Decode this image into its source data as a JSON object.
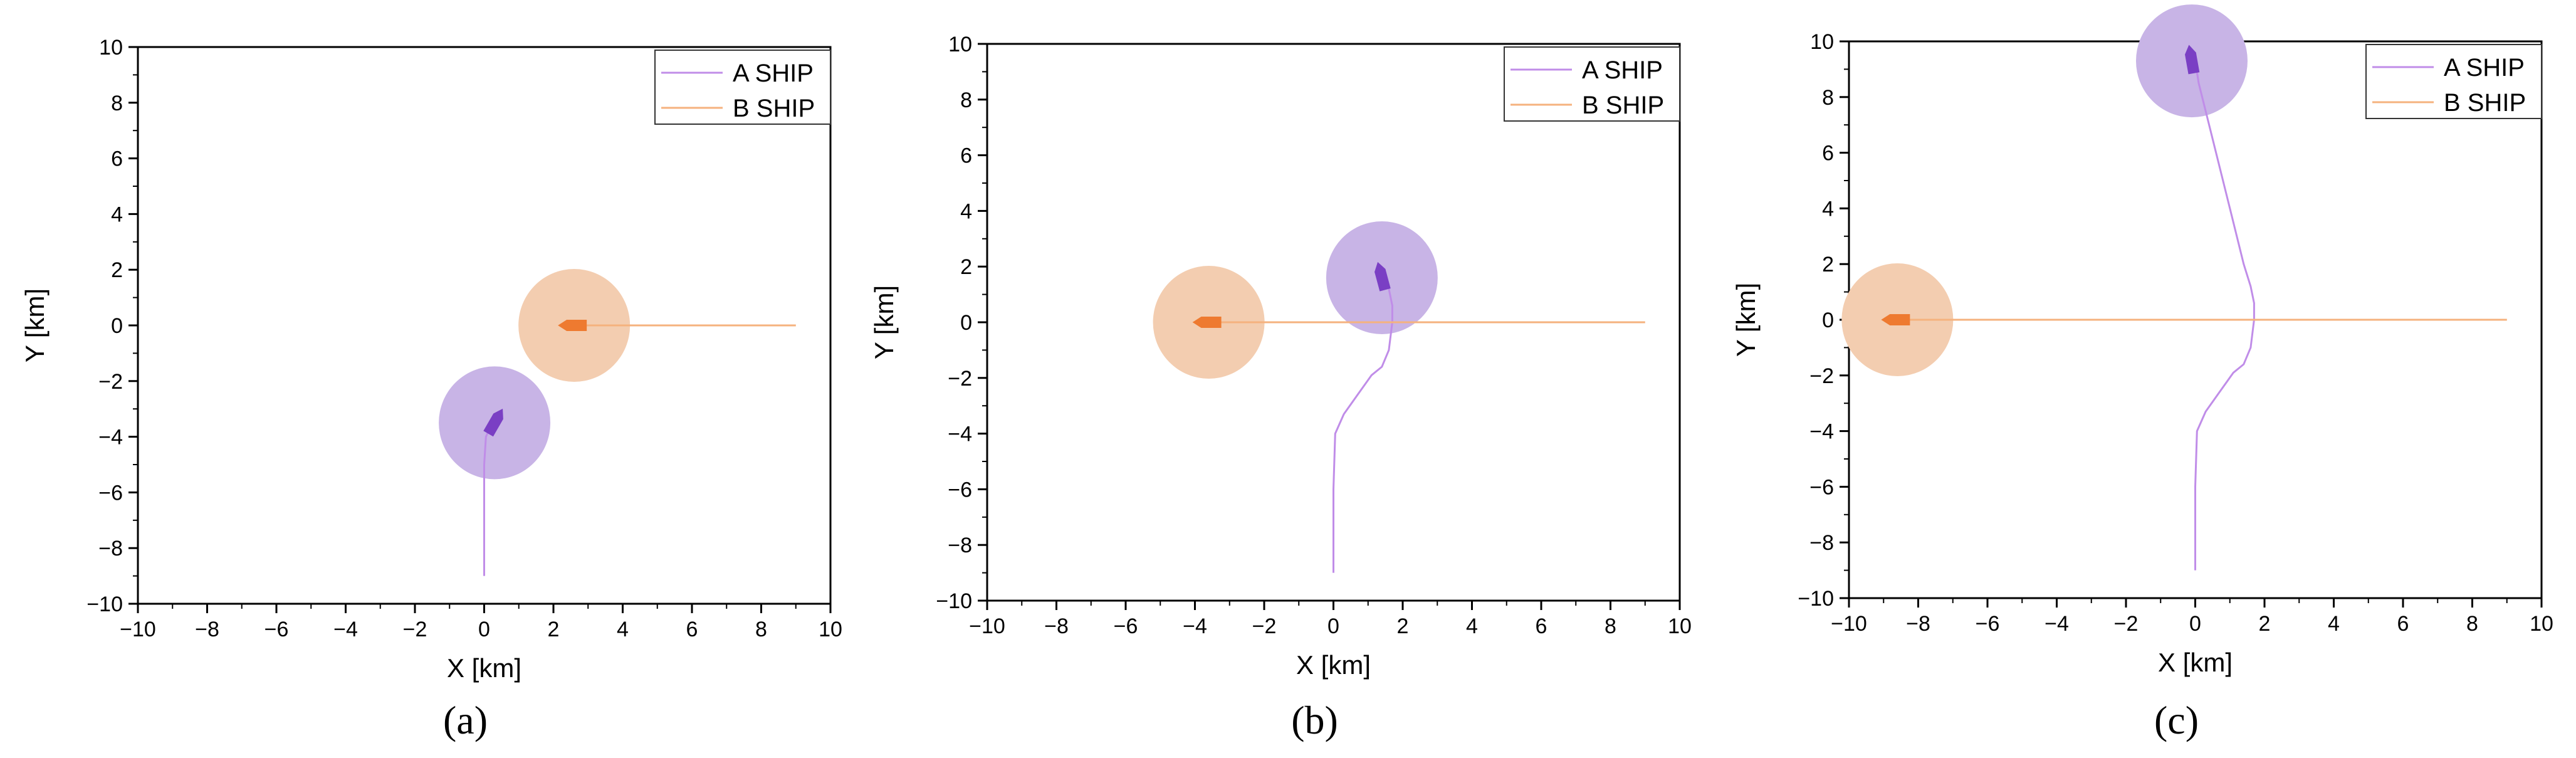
{
  "chart_data": [
    {
      "type": "line",
      "caption": "(a)",
      "xlabel": "X [km]",
      "ylabel": "Y [km]",
      "xlim": [
        -10,
        10
      ],
      "ylim": [
        -10,
        10
      ],
      "xticks": [
        -10,
        -8,
        -6,
        -4,
        -2,
        0,
        2,
        4,
        6,
        8,
        10
      ],
      "yticks": [
        -10,
        -8,
        -6,
        -4,
        -2,
        0,
        2,
        4,
        6,
        8,
        10
      ],
      "legend": [
        "A SHIP",
        "B SHIP"
      ],
      "series": [
        {
          "name": "A SHIP",
          "color": "#c08de8",
          "x": [
            0.0,
            0.0,
            0.0,
            0.05,
            0.2
          ],
          "y": [
            -9.0,
            -7.0,
            -5.0,
            -4.0,
            -3.6
          ]
        },
        {
          "name": "B SHIP",
          "color": "#f5b27e",
          "x": [
            9.0,
            6.0,
            4.0,
            2.6
          ],
          "y": [
            0.0,
            0.0,
            0.0,
            0.0
          ]
        }
      ],
      "ship_positions": [
        {
          "name": "A SHIP",
          "x": 0.3,
          "y": -3.5,
          "heading_deg": 30,
          "zone_color": "#c8b4e6",
          "ship_color": "#7a3fc4"
        },
        {
          "name": "B SHIP",
          "x": 2.6,
          "y": 0.0,
          "heading_deg": 270,
          "zone_color": "#f3cdb0",
          "ship_color": "#ee7a30"
        }
      ]
    },
    {
      "type": "line",
      "caption": "(b)",
      "xlabel": "X [km]",
      "ylabel": "Y [km]",
      "xlim": [
        -10,
        10
      ],
      "ylim": [
        -10,
        10
      ],
      "xticks": [
        -10,
        -8,
        -6,
        -4,
        -2,
        0,
        2,
        4,
        6,
        8,
        10
      ],
      "yticks": [
        -10,
        -8,
        -6,
        -4,
        -2,
        0,
        2,
        4,
        6,
        8,
        10
      ],
      "legend": [
        "A SHIP",
        "B SHIP"
      ],
      "series": [
        {
          "name": "A SHIP",
          "color": "#c08de8",
          "x": [
            0.0,
            0.0,
            0.05,
            0.3,
            0.7,
            1.1,
            1.4,
            1.6,
            1.7,
            1.7,
            1.6,
            1.4
          ],
          "y": [
            -9.0,
            -6.0,
            -4.0,
            -3.3,
            -2.6,
            -1.9,
            -1.6,
            -1.0,
            0.0,
            0.6,
            1.2,
            1.7
          ]
        },
        {
          "name": "B SHIP",
          "color": "#f5b27e",
          "x": [
            9.0,
            4.0,
            0.0,
            -3.6
          ],
          "y": [
            0.0,
            0.0,
            0.0,
            0.0
          ]
        }
      ],
      "ship_positions": [
        {
          "name": "A SHIP",
          "x": 1.4,
          "y": 1.6,
          "heading_deg": -15,
          "zone_color": "#c8b4e6",
          "ship_color": "#7a3fc4"
        },
        {
          "name": "B SHIP",
          "x": -3.6,
          "y": 0.0,
          "heading_deg": 270,
          "zone_color": "#f3cdb0",
          "ship_color": "#ee7a30"
        }
      ]
    },
    {
      "type": "line",
      "caption": "(c)",
      "xlabel": "X [km]",
      "ylabel": "Y [km]",
      "xlim": [
        -10,
        10
      ],
      "ylim": [
        -10,
        10
      ],
      "xticks": [
        -10,
        -8,
        -6,
        -4,
        -2,
        0,
        2,
        4,
        6,
        8,
        10
      ],
      "yticks": [
        -10,
        -8,
        -6,
        -4,
        -2,
        0,
        2,
        4,
        6,
        8,
        10
      ],
      "legend": [
        "A SHIP",
        "B SHIP"
      ],
      "series": [
        {
          "name": "A SHIP",
          "color": "#c08de8",
          "x": [
            0.0,
            0.0,
            0.05,
            0.3,
            0.7,
            1.1,
            1.4,
            1.6,
            1.7,
            1.7,
            1.6,
            1.4,
            1.0,
            0.6,
            0.3,
            0.1,
            0.0
          ],
          "y": [
            -9.0,
            -6.0,
            -4.0,
            -3.3,
            -2.6,
            -1.9,
            -1.6,
            -1.0,
            0.0,
            0.6,
            1.2,
            2.0,
            4.0,
            6.0,
            7.5,
            8.5,
            9.3
          ]
        },
        {
          "name": "B SHIP",
          "color": "#f5b27e",
          "x": [
            9.0,
            2.0,
            -4.0,
            -8.6
          ],
          "y": [
            0.0,
            0.0,
            0.0,
            0.0
          ]
        }
      ],
      "ship_positions": [
        {
          "name": "A SHIP",
          "x": -0.1,
          "y": 9.3,
          "heading_deg": -10,
          "zone_color": "#c8b4e6",
          "ship_color": "#7a3fc4"
        },
        {
          "name": "B SHIP",
          "x": -8.6,
          "y": 0.0,
          "heading_deg": 270,
          "zone_color": "#f3cdb0",
          "ship_color": "#ee7a30"
        }
      ]
    }
  ]
}
